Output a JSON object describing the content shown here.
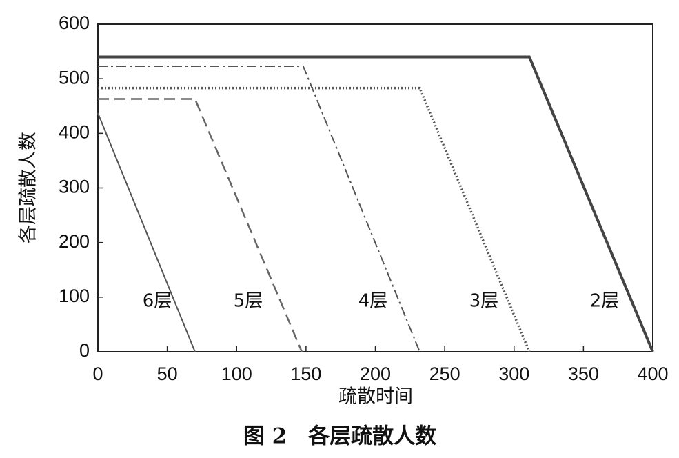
{
  "chart_data": {
    "type": "line",
    "caption": "图 2　各层疏散人数",
    "x_label": "疏散时间",
    "y_label": "各层疏散人数",
    "xlim": [
      0,
      400
    ],
    "ylim": [
      0,
      600
    ],
    "xticks": [
      0,
      50,
      100,
      150,
      200,
      250,
      300,
      350,
      400
    ],
    "yticks": [
      0,
      100,
      200,
      300,
      400,
      500,
      600
    ],
    "grid": false,
    "series": [
      {
        "name": "6层",
        "color": "#555555",
        "style": "solid",
        "width": 2,
        "x": [
          0,
          70
        ],
        "values": [
          437,
          0
        ]
      },
      {
        "name": "5层",
        "color": "#666666",
        "style": "dashed",
        "width": 2.5,
        "x": [
          0,
          70,
          147
        ],
        "values": [
          463,
          463,
          0
        ]
      },
      {
        "name": "4层",
        "color": "#555555",
        "style": "dashdot",
        "width": 2,
        "x": [
          0,
          148,
          232
        ],
        "values": [
          523,
          523,
          0
        ]
      },
      {
        "name": "3层",
        "color": "#555555",
        "style": "dotted",
        "width": 3.5,
        "x": [
          0,
          232,
          311
        ],
        "values": [
          483,
          483,
          0
        ]
      },
      {
        "name": "2层",
        "color": "#444444",
        "style": "solid",
        "width": 4,
        "x": [
          0,
          311,
          400
        ],
        "values": [
          540,
          540,
          0
        ]
      }
    ]
  }
}
